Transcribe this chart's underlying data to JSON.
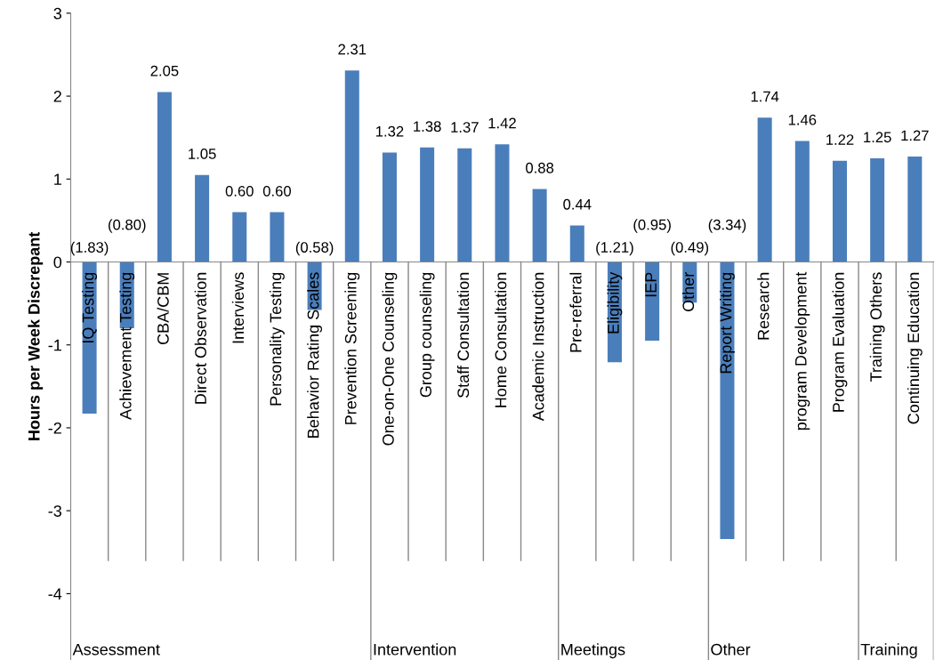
{
  "chart_data": {
    "type": "bar",
    "ylabel": "Hours per Week Discrepant",
    "categories": [
      "IQ Testing",
      "Achievement Testing",
      "CBA/CBM",
      "Direct Observation",
      "Interviews",
      "Personality Testing",
      "Behavior Rating Scales",
      "Prevention Screening",
      "One-on-One Counseling",
      "Group counseling",
      "Staff Consultation",
      "Home Consultation",
      "Academic Instruction",
      "Pre-referral",
      "Eligibility",
      "IEP",
      "Other",
      "Report Writing",
      "Research",
      "program Development",
      "Program Evaluation",
      "Training Others",
      "Continuing Education"
    ],
    "values": [
      -1.83,
      -0.8,
      2.05,
      1.05,
      0.6,
      0.6,
      -0.58,
      2.31,
      1.32,
      1.38,
      1.37,
      1.42,
      0.88,
      0.44,
      -1.21,
      -0.95,
      -0.49,
      -3.34,
      1.74,
      1.46,
      1.22,
      1.25,
      1.27
    ],
    "value_labels": [
      "(1.83)",
      "(0.80)",
      "2.05",
      "1.05",
      "0.60",
      "0.60",
      "(0.58)",
      "2.31",
      "1.32",
      "1.38",
      "1.37",
      "1.42",
      "0.88",
      "0.44",
      "(1.21)",
      "(0.95)",
      "(0.49)",
      "(3.34)",
      "1.74",
      "1.46",
      "1.22",
      "1.25",
      "1.27"
    ],
    "color": "#4a7ebb",
    "ylim": [
      -4.8,
      3
    ],
    "yticks": [
      -4,
      -3,
      -2,
      -1,
      0,
      1,
      2,
      3
    ],
    "grid": false,
    "annotations": [
      "Assessment",
      "Intervention",
      "Meetings",
      "Other",
      "Training"
    ]
  }
}
